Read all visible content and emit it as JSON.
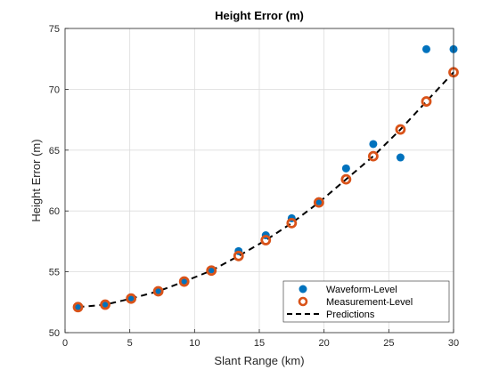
{
  "chart_data": {
    "type": "scatter",
    "title": "Height Error (m)",
    "xlabel": "Slant Range (km)",
    "ylabel": "Height Error (m)",
    "xlim": [
      0,
      30
    ],
    "ylim": [
      50,
      75
    ],
    "xticks": [
      "0",
      "5",
      "10",
      "15",
      "20",
      "25",
      "30"
    ],
    "yticks": [
      "50",
      "55",
      "60",
      "65",
      "70",
      "75"
    ],
    "grid": true,
    "legend_position": "bottom-right",
    "series": [
      {
        "name": "Waveform-Level",
        "style": "filled-circle",
        "color": "#0072BD",
        "x": [
          1.0,
          3.1,
          5.1,
          7.2,
          9.2,
          11.3,
          13.4,
          15.5,
          17.5,
          19.6,
          21.7,
          23.8,
          25.9,
          27.9,
          30.0
        ],
        "y": [
          52.1,
          52.3,
          52.8,
          53.4,
          54.2,
          55.2,
          56.7,
          58.0,
          59.4,
          60.8,
          63.5,
          65.5,
          64.4,
          73.3,
          73.3
        ]
      },
      {
        "name": "Measurement-Level",
        "style": "open-circle",
        "color": "#D95319",
        "x": [
          1.0,
          3.1,
          5.1,
          7.2,
          9.2,
          11.3,
          13.4,
          15.5,
          17.5,
          19.6,
          21.7,
          23.8,
          25.9,
          27.9,
          30.0
        ],
        "y": [
          52.1,
          52.3,
          52.8,
          53.4,
          54.2,
          55.1,
          56.3,
          57.6,
          59.0,
          60.7,
          62.6,
          64.5,
          66.7,
          69.0,
          71.4
        ]
      },
      {
        "name": "Predictions",
        "style": "dashed-line",
        "color": "#000000",
        "x": [
          1.0,
          3.1,
          5.1,
          7.2,
          9.2,
          11.3,
          13.4,
          15.5,
          17.5,
          19.6,
          21.7,
          23.8,
          25.9,
          27.9,
          30.0
        ],
        "y": [
          52.1,
          52.3,
          52.8,
          53.4,
          54.2,
          55.1,
          56.3,
          57.6,
          59.0,
          60.7,
          62.6,
          64.5,
          66.7,
          69.0,
          71.4
        ]
      }
    ]
  }
}
